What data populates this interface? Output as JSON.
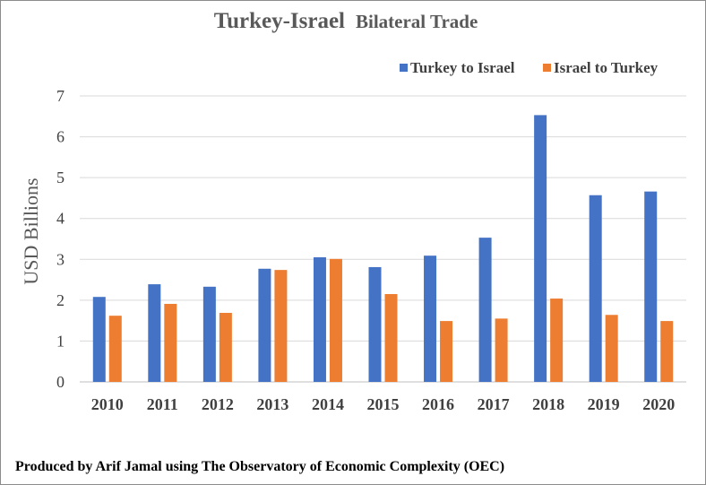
{
  "chart_data": {
    "type": "bar",
    "title_main": "Turkey-Israel",
    "title_sub": "Bilateral Trade",
    "xlabel": "",
    "ylabel": "USD Billions",
    "ylim": [
      0,
      7
    ],
    "yticks": [
      0,
      1,
      2,
      3,
      4,
      5,
      6,
      7
    ],
    "grid": true,
    "legend_position": "top-right",
    "categories": [
      "2010",
      "2011",
      "2012",
      "2013",
      "2014",
      "2015",
      "2016",
      "2017",
      "2018",
      "2019",
      "2020"
    ],
    "series": [
      {
        "name": "Turkey to Israel",
        "color": "#4472C4",
        "values": [
          2.08,
          2.39,
          2.33,
          2.77,
          3.05,
          2.81,
          3.09,
          3.53,
          6.53,
          4.57,
          4.66
        ]
      },
      {
        "name": "Israel to Turkey",
        "color": "#ED7D31",
        "values": [
          1.62,
          1.91,
          1.69,
          2.74,
          3.01,
          2.15,
          1.49,
          1.55,
          2.04,
          1.64,
          1.49
        ]
      }
    ]
  },
  "footer": {
    "credit": "Produced by Arif Jamal using The Observatory of Economic Complexity (OEC)"
  }
}
